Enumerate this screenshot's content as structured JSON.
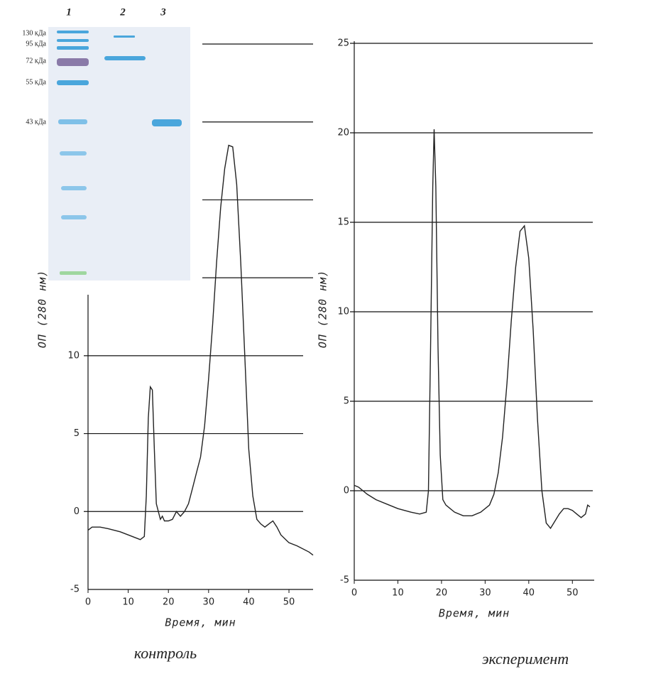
{
  "gel": {
    "lanes": [
      "1",
      "2",
      "3"
    ],
    "markers": [
      "130 кДа",
      "95 кДа",
      "72 кДа",
      "55 кДа",
      "43 кДа"
    ]
  },
  "chart_data": [
    {
      "type": "line",
      "caption": "контроль",
      "x_label": "Время, мин",
      "y_label": "ОП (280 нм)",
      "color": "#222222",
      "xlim": [
        0,
        56
      ],
      "xticks": [
        0,
        10,
        20,
        30,
        40,
        50
      ],
      "ylim": [
        -5,
        30
      ],
      "yticks": [
        -5,
        0,
        5,
        10
      ],
      "grid": true,
      "extra_grid": [
        15,
        20,
        25,
        30
      ],
      "x": [
        0,
        1,
        3,
        5,
        8,
        10,
        13,
        14,
        14.5,
        15,
        15.5,
        16,
        16.5,
        17,
        18,
        18.5,
        19,
        20,
        21,
        22,
        23,
        24,
        25,
        26,
        27,
        28,
        29,
        30,
        31,
        32,
        33,
        34,
        35,
        36,
        37,
        38,
        39,
        40,
        41,
        42,
        43,
        44,
        45,
        46,
        47,
        48,
        50,
        52,
        55,
        56
      ],
      "values": [
        -1.2,
        -1.0,
        -1.0,
        -1.1,
        -1.3,
        -1.5,
        -1.8,
        -1.6,
        1,
        6,
        8,
        7.8,
        4,
        0.5,
        -0.5,
        -0.3,
        -0.6,
        -0.6,
        -0.5,
        0,
        -0.3,
        0,
        0.5,
        1.5,
        2.5,
        3.5,
        5.5,
        8.5,
        12,
        16,
        19.5,
        22,
        23.5,
        23.4,
        21,
        16,
        10,
        4,
        1,
        -0.5,
        -0.8,
        -1.0,
        -0.8,
        -0.6,
        -1.0,
        -1.5,
        -2.0,
        -2.2,
        -2.6,
        -2.8
      ]
    },
    {
      "type": "line",
      "caption": "эксперимент",
      "x_label": "Время, мин",
      "y_label": "ОП (280 нм)",
      "color": "#222222",
      "xlim": [
        0,
        55
      ],
      "xticks": [
        0,
        10,
        20,
        30,
        40,
        50
      ],
      "ylim": [
        -5,
        25
      ],
      "yticks": [
        -5,
        0,
        5,
        10,
        15,
        20,
        25
      ],
      "grid": true,
      "x": [
        0,
        1,
        3,
        5,
        8,
        10,
        13,
        15,
        16.5,
        17,
        17.5,
        18,
        18.3,
        18.7,
        19.2,
        19.7,
        20.3,
        21,
        22,
        23,
        25,
        27,
        29,
        31,
        32,
        33,
        34,
        35,
        36,
        37,
        38,
        39,
        40,
        41,
        42,
        43,
        44,
        45,
        46,
        47,
        48,
        49,
        50,
        51,
        52,
        53,
        53.5,
        54
      ],
      "values": [
        0.3,
        0.2,
        -0.2,
        -0.5,
        -0.8,
        -1.0,
        -1.2,
        -1.3,
        -1.2,
        0,
        8,
        17,
        20.2,
        17,
        8,
        2,
        -0.5,
        -0.8,
        -1.0,
        -1.2,
        -1.4,
        -1.4,
        -1.2,
        -0.8,
        -0.2,
        1,
        3,
        6,
        9.5,
        12.5,
        14.5,
        14.8,
        13,
        9,
        4,
        0,
        -1.8,
        -2.1,
        -1.7,
        -1.3,
        -1.0,
        -1.0,
        -1.1,
        -1.3,
        -1.5,
        -1.3,
        -0.8,
        -0.9
      ]
    }
  ]
}
